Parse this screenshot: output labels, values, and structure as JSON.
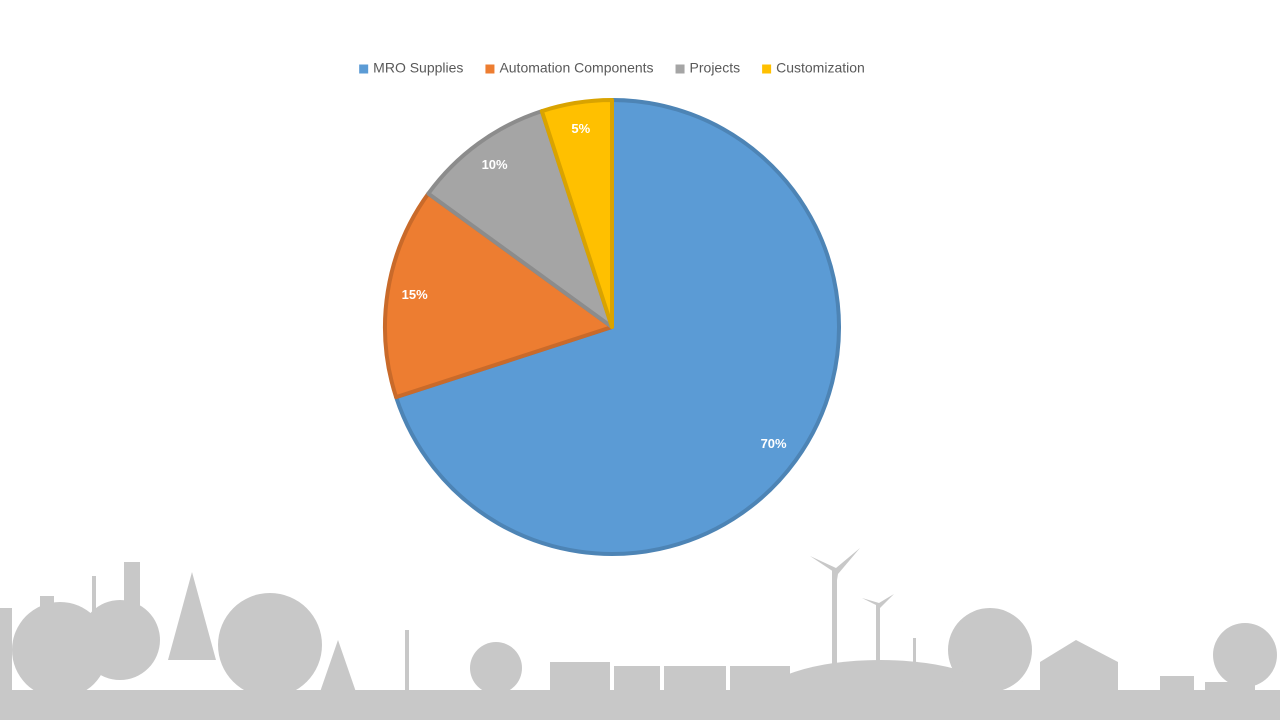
{
  "chart_data": {
    "type": "pie",
    "categories": [
      "MRO Supplies",
      "Automation Components",
      "Projects",
      "Customization"
    ],
    "values": [
      70,
      15,
      10,
      5
    ],
    "value_labels": [
      "70%",
      "15%",
      "10%",
      "5%"
    ],
    "colors": [
      "#5b9bd5",
      "#ed7d31",
      "#a5a5a5",
      "#ffc000"
    ],
    "legend": "top"
  }
}
